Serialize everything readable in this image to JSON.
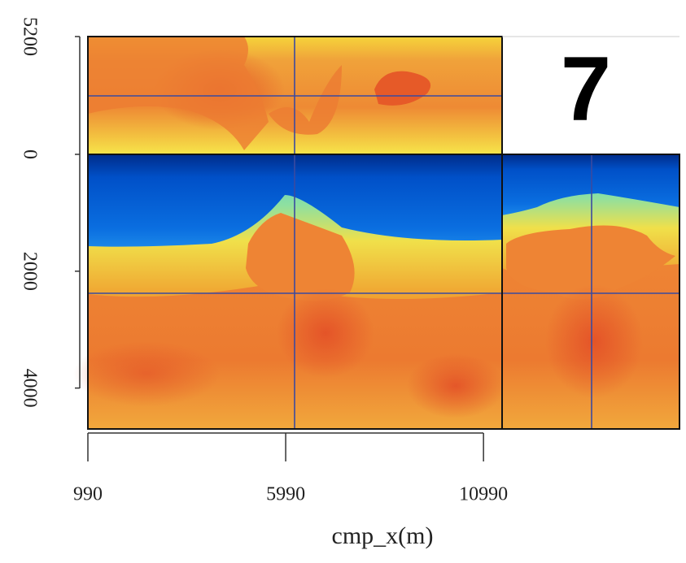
{
  "chart_data": {
    "type": "seismic-slices",
    "annotation": "7",
    "xlabel": "cmp_x(m)",
    "xlim": [
      990,
      11460
    ],
    "xticks": [
      990,
      5990,
      10990
    ],
    "inline_ylim": [
      0,
      5200
    ],
    "inline_yticks": [
      5200
    ],
    "depth_ylim": [
      0,
      4700
    ],
    "depth_yticks": [
      0,
      2000,
      4000
    ]
  }
}
